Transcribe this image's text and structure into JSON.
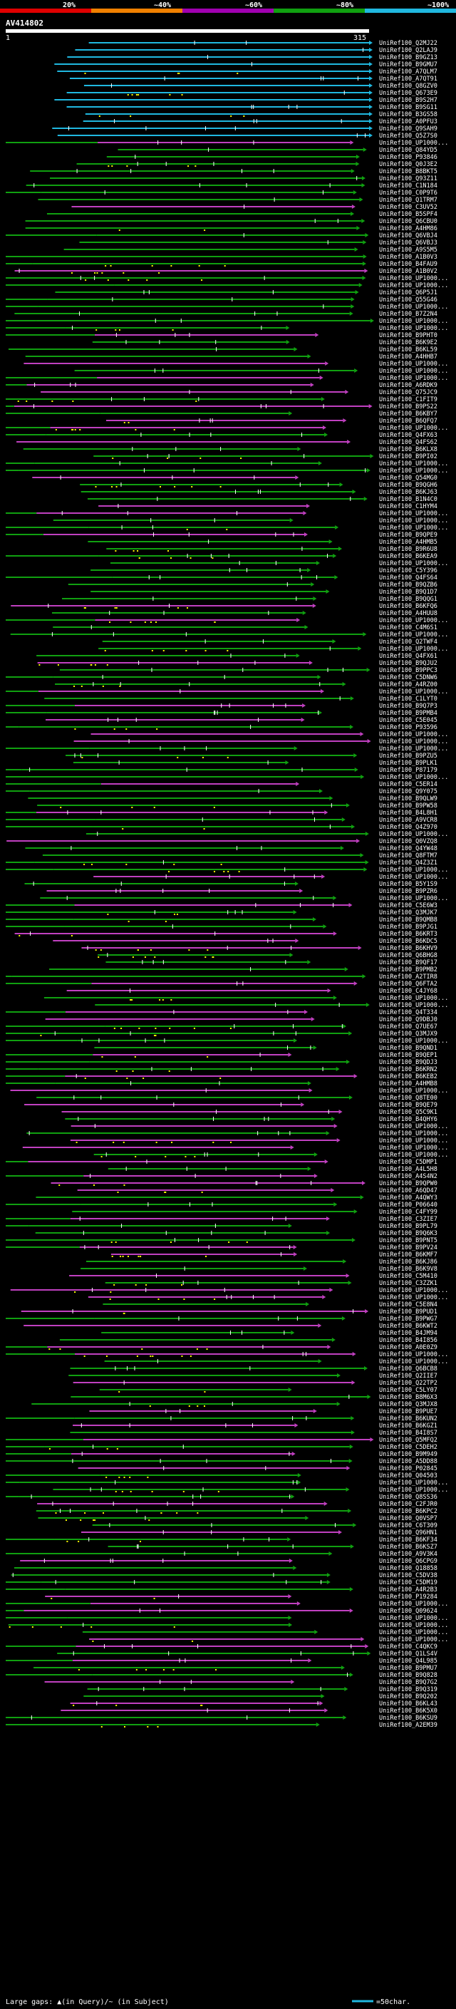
{
  "chart_data": {
    "type": "alignment-overview",
    "title": "AV414802",
    "query_length": 315,
    "scale": {
      "start_label": "1",
      "end_label": "315"
    },
    "identity_legend": [
      {
        "label": "20%",
        "color": "#e00000"
      },
      {
        "label": "~40%",
        "color": "#f08000"
      },
      {
        "label": "~60%",
        "color": "#a000b0"
      },
      {
        "label": "~80%",
        "color": "#10a010"
      },
      {
        "label": "~100%",
        "color": "#20b8e0"
      }
    ],
    "hits": [
      "UniRef100_Q2MJ22",
      "UniRef100_Q2LAJ9",
      "UniRef100_B9GZ13",
      "UniRef100_B9GMU7",
      "UniRef100_A7QLM7",
      "UniRef100_A7QT91",
      "UniRef100_Q8GZV0",
      "UniRef100_Q673E9",
      "UniRef100_B9S2H7",
      "UniRef100_B9SG11",
      "UniRef100_B3GS58",
      "UniRef100_A0PFU3",
      "UniRef100_Q9SAH9",
      "UniRef100_Q5Z7S0",
      "UniRef100_UP1000...",
      "UniRef100_Q84YD5",
      "UniRef100_P93846",
      "UniRef100_Q0J3E2",
      "UniRef100_B8BKT5",
      "UniRef100_Q93Z11",
      "UniRef100_C1N184",
      "UniRef100_C0P9T6",
      "UniRef100_Q1TRM7",
      "UniRef100_C3UV52",
      "UniRef100_B5SPF4",
      "UniRef100_Q6CBU0",
      "UniRef100_A4HM86",
      "UniRef100_Q6VBJ4",
      "UniRef100_Q6VBJ3",
      "UniRef100_A9S5M5",
      "UniRef100_A1B0V3",
      "UniRef100_B4FAU9",
      "UniRef100_A1B0V2",
      "UniRef100_UP1000...",
      "UniRef100_UP1000...",
      "UniRef100_Q6P5J1",
      "UniRef100_Q55G46",
      "UniRef100_UP1000...",
      "UniRef100_B7Z2N4",
      "UniRef100_UP1000...",
      "UniRef100_UP1000...",
      "UniRef100_B9PHT0",
      "UniRef100_B6K9E2",
      "UniRef100_B6KL59",
      "UniRef100_A4HHB7",
      "UniRef100_UP1000...",
      "UniRef100_UP1000...",
      "UniRef100_UP1000...",
      "UniRef100_A6RDK9",
      "UniRef100_Q75JC9",
      "UniRef100_C1FIT9",
      "UniRef100_B9PS22",
      "UniRef100_B6KBY7",
      "UniRef100_B6QFQ7",
      "UniRef100_UP1000...",
      "UniRef100_Q4FX63",
      "UniRef100_Q4FS62",
      "UniRef100_B6KLX8",
      "UniRef100_B9PI02",
      "UniRef100_UP1000...",
      "UniRef100_UP1000...",
      "UniRef100_Q54MG0",
      "UniRef100_B9QGH6",
      "UniRef100_B6KJ63",
      "UniRef100_B1N4C0",
      "UniRef100_C1HYM4",
      "UniRef100_UP1000...",
      "UniRef100_UP1000...",
      "UniRef100_UP1000...",
      "UniRef100_B9QPE9",
      "UniRef100_A4HMB5",
      "UniRef100_B9R6U8",
      "UniRef100_B6KEA9",
      "UniRef100_UP1000...",
      "UniRef100_C5Y396",
      "UniRef100_Q4FS64",
      "UniRef100_B9QZB6",
      "UniRef100_B9Q1D7",
      "UniRef100_B9QQG1",
      "UniRef100_B6KFQ6",
      "UniRef100_A4HUU8",
      "UniRef100_UP1000...",
      "UniRef100_C4M6S1",
      "UniRef100_UP1000...",
      "UniRef100_Q2TWF4",
      "UniRef100_UP1000...",
      "UniRef100_Q4FX61",
      "UniRef100_B9QJU2",
      "UniRef100_B9PPC3",
      "UniRef100_C5DNW6",
      "UniRef100_A4RZ00",
      "UniRef100_UP1000...",
      "UniRef100_C1LYT0",
      "UniRef100_B9Q7P3",
      "UniRef100_B9PMB4",
      "UniRef100_C5E045",
      "UniRef100_P93596",
      "UniRef100_UP1000...",
      "UniRef100_UP1000...",
      "UniRef100_UP1000...",
      "UniRef100_B9PZU5",
      "UniRef100_B9PLK1",
      "UniRef100_P87179",
      "UniRef100_UP1000...",
      "UniRef100_C5ER14",
      "UniRef100_Q9Y075",
      "UniRef100_B9QLW9",
      "UniRef100_B9PW58",
      "UniRef100_B4L8H1",
      "UniRef100_A9VCR8",
      "UniRef100_Q4Z970",
      "UniRef100_UP1000...",
      "UniRef100_Q0VZQ8",
      "UniRef100_Q4YW48",
      "UniRef100_Q8FTM7",
      "UniRef100_Q4Z3Z1",
      "UniRef100_UP1000...",
      "UniRef100_UP1000...",
      "UniRef100_B5Y1S9",
      "UniRef100_B9PZR6",
      "UniRef100_UP1000...",
      "UniRef100_C5E6W3",
      "UniRef100_Q3MJK7",
      "UniRef100_B9QMB8",
      "UniRef100_B9PJG1",
      "UniRef100_B6KRT3",
      "UniRef100_B6KDC5",
      "UniRef100_B6KHV9",
      "UniRef100_Q6BHG8",
      "UniRef100_B9QF17",
      "UniRef100_B9PMB2",
      "UniRef100_A2TIR8",
      "UniRef100_Q6FTA2",
      "UniRef100_C4JY68",
      "UniRef100_UP1000...",
      "UniRef100_UP1000...",
      "UniRef100_Q4T334",
      "UniRef100_Q9DBJ0",
      "UniRef100_Q7UE67",
      "UniRef100_Q3MJX9",
      "UniRef100_UP1000...",
      "UniRef100_B9QND1",
      "UniRef100_B9QEP1",
      "UniRef100_B9QDJ3",
      "UniRef100_B6KRN2",
      "UniRef100_B6KEB2",
      "UniRef100_A4HMB8",
      "UniRef100_UP1000...",
      "UniRef100_Q8TE00",
      "UniRef100_B9QE79",
      "UniRef100_Q5C9K1",
      "UniRef100_B4QHY6",
      "UniRef100_UP1000...",
      "UniRef100_UP1000...",
      "UniRef100_UP1000...",
      "UniRef100_UP1000...",
      "UniRef100_UP1000...",
      "UniRef100_C5DMP1",
      "UniRef100_A4L5H8",
      "UniRef100_A4S4N2",
      "UniRef100_B9QPW0",
      "UniRef100_A6QD47",
      "UniRef100_A4QWY3",
      "UniRef100_P06640",
      "UniRef100_C4FY99",
      "UniRef100_C3ZIE7",
      "UniRef100_B9PL79",
      "UniRef100_B9Q6K3",
      "UniRef100_B9PNT5",
      "UniRef100_B9PV24",
      "UniRef100_B6KMF7",
      "UniRef100_B6KJ86",
      "UniRef100_B6K9V8",
      "UniRef100_C5M410",
      "UniRef100_C3ZZK1",
      "UniRef100_UP1000...",
      "UniRef100_UP1000...",
      "UniRef100_C5E8N4",
      "UniRef100_B9PUD1",
      "UniRef100_B9PWG7",
      "UniRef100_B6KWT2",
      "UniRef100_B4JM94",
      "UniRef100_B4I856",
      "UniRef100_A0E0Z9",
      "UniRef100_UP1000...",
      "UniRef100_UP1000...",
      "UniRef100_Q6BCB8",
      "UniRef100_Q2IIE7",
      "UniRef100_Q22TP2",
      "UniRef100_C5LY07",
      "UniRef100_B8M6X3",
      "UniRef100_Q3MJX8",
      "UniRef100_B9PUE7",
      "UniRef100_B6KUN2",
      "UniRef100_B6KGZ1",
      "UniRef100_B4I8S7",
      "UniRef100_Q5MFQ2",
      "UniRef100_C5DEH2",
      "UniRef100_B9M949",
      "UniRef100_A5DD88",
      "UniRef100_P02845",
      "UniRef100_Q04503",
      "UniRef100_UP1000...",
      "UniRef100_UP1000...",
      "UniRef100_Q8SS36",
      "UniRef100_C2FJR0",
      "UniRef100_B6KPC2",
      "UniRef100_Q0VSP7",
      "UniRef100_C6T309",
      "UniRef100_Q96HN1",
      "UniRef100_B6KF34",
      "UniRef100_B6KSZ7",
      "UniRef100_A9V3K4",
      "UniRef100_Q6CPG9",
      "UniRef100_Q18858",
      "UniRef100_C5DV38",
      "UniRef100_C5DM19",
      "UniRef100_A4R2B3",
      "UniRef100_P19284",
      "UniRef100_UP1000...",
      "UniRef100_Q09624",
      "UniRef100_UP1000...",
      "UniRef100_UP1000...",
      "UniRef100_UP1000...",
      "UniRef100_UP1000...",
      "UniRef100_C4QKC9",
      "UniRef100_Q1LS4V",
      "UniRef100_Q4L985",
      "UniRef100_B9PMU7",
      "UniRef100_B9Q828",
      "UniRef100_B9Q7G2",
      "UniRef100_B9Q319",
      "UniRef100_B9Q202",
      "UniRef100_B6KL43",
      "UniRef100_B6K5X0",
      "UniRef100_B6KSU9",
      "UniRef100_A2EM39"
    ],
    "footer_legend": {
      "gaps_text": "Large gaps: ▲(in Query)/~ (in Subject)",
      "scale_text": "=50char."
    }
  }
}
